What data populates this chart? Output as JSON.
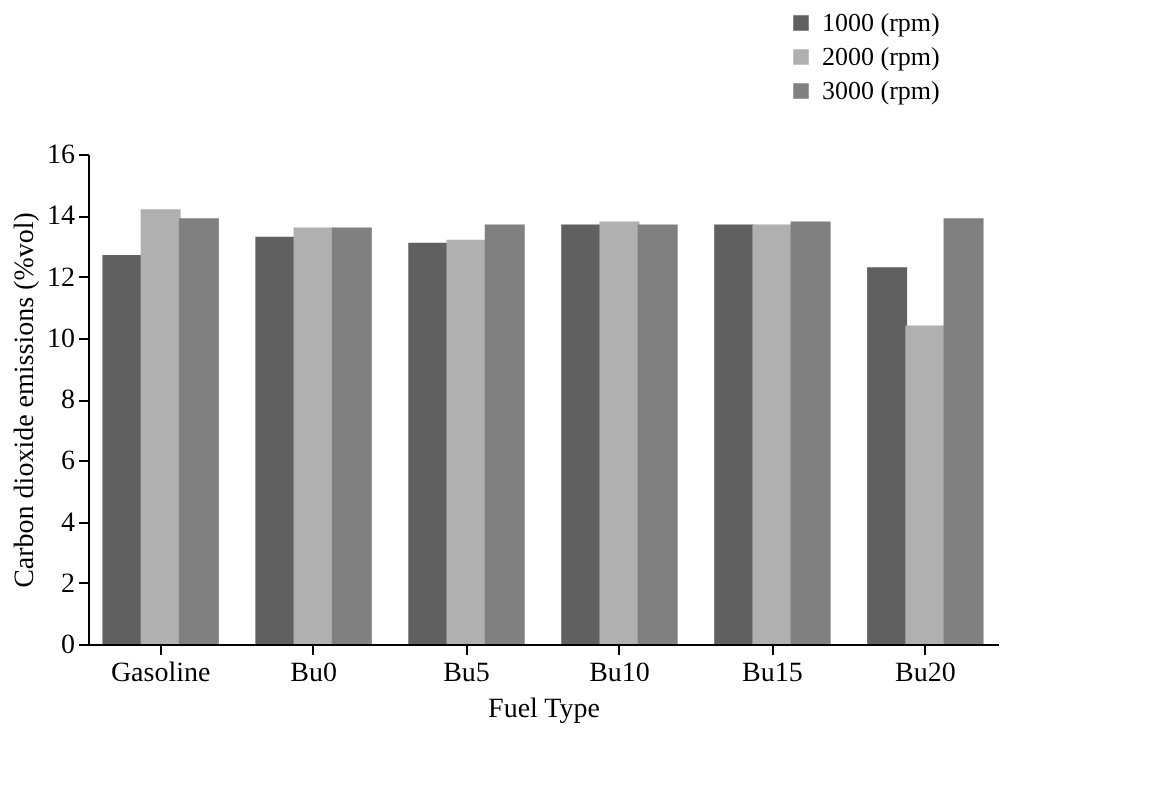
{
  "chart_data": {
    "type": "bar",
    "xlabel": "Fuel Type",
    "ylabel": "Carbon dioxide emissions (%vol)",
    "categories": [
      "Gasoline",
      "Bu0",
      "Bu5",
      "Bu10",
      "Bu15",
      "Bu20"
    ],
    "series": [
      {
        "name": "1000 (rpm)",
        "color": "#606060",
        "values": [
          12.7,
          13.3,
          13.1,
          13.7,
          13.7,
          12.3
        ]
      },
      {
        "name": "2000 (rpm)",
        "color": "#b0b0b0",
        "values": [
          14.2,
          13.6,
          13.2,
          13.8,
          13.7,
          10.4
        ]
      },
      {
        "name": "3000 (rpm)",
        "color": "#808080",
        "values": [
          13.9,
          13.6,
          13.7,
          13.7,
          13.8,
          13.9
        ]
      }
    ],
    "ylim": [
      0,
      16
    ],
    "yticks": [
      0,
      2,
      4,
      6,
      8,
      10,
      12,
      14,
      16
    ],
    "grid": false,
    "legend": "top right"
  }
}
